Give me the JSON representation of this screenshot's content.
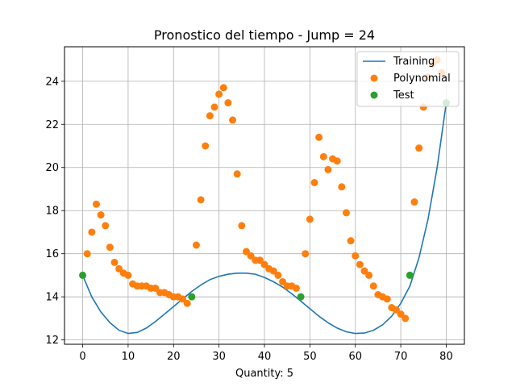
{
  "chart_data": {
    "type": "line",
    "title": "Pronostico del tiempo - Jump = 24",
    "xlabel": "Quantity: 5",
    "ylabel": "",
    "xlim": [
      -4,
      84
    ],
    "ylim": [
      11.8,
      25.6
    ],
    "xticks": [
      0,
      10,
      20,
      30,
      40,
      50,
      60,
      70,
      80
    ],
    "yticks": [
      12,
      14,
      16,
      18,
      20,
      22,
      24
    ],
    "grid": true,
    "legend_position": "top-right",
    "colors": {
      "training": "#1f77b4",
      "polynomial": "#ff7f0e",
      "test": "#2ca02c"
    },
    "series": [
      {
        "name": "Training",
        "kind": "line",
        "x": [
          0,
          2,
          4,
          6,
          8,
          10,
          12,
          14,
          16,
          18,
          20,
          22,
          24,
          26,
          28,
          30,
          32,
          34,
          36,
          38,
          40,
          42,
          44,
          46,
          48,
          50,
          52,
          54,
          56,
          58,
          60,
          62,
          64,
          66,
          68,
          70,
          72,
          74,
          76,
          78,
          80
        ],
        "y": [
          15.0,
          14.0,
          13.3,
          12.8,
          12.45,
          12.3,
          12.35,
          12.55,
          12.85,
          13.2,
          13.55,
          13.9,
          14.25,
          14.55,
          14.8,
          14.95,
          15.05,
          15.1,
          15.1,
          15.05,
          14.9,
          14.7,
          14.45,
          14.15,
          13.8,
          13.45,
          13.1,
          12.8,
          12.55,
          12.38,
          12.3,
          12.32,
          12.45,
          12.7,
          13.1,
          13.7,
          14.5,
          15.8,
          17.6,
          20.0,
          23.0
        ]
      },
      {
        "name": "Polynomial",
        "kind": "scatter",
        "x": [
          1,
          2,
          3,
          4,
          5,
          6,
          7,
          8,
          9,
          10,
          11,
          12,
          13,
          14,
          15,
          16,
          17,
          18,
          19,
          20,
          21,
          22,
          23,
          25,
          26,
          27,
          28,
          29,
          30,
          31,
          32,
          33,
          34,
          35,
          36,
          37,
          38,
          39,
          40,
          41,
          42,
          43,
          44,
          45,
          46,
          47,
          49,
          50,
          51,
          52,
          53,
          54,
          55,
          56,
          57,
          58,
          59,
          60,
          61,
          62,
          63,
          64,
          65,
          66,
          67,
          68,
          69,
          70,
          71,
          73,
          74,
          75,
          76,
          77,
          78,
          79
        ],
        "y": [
          16.0,
          17.0,
          18.3,
          17.8,
          17.3,
          16.3,
          15.6,
          15.3,
          15.1,
          15.0,
          14.6,
          14.5,
          14.5,
          14.5,
          14.4,
          14.4,
          14.2,
          14.2,
          14.1,
          14.0,
          14.0,
          13.9,
          13.7,
          16.4,
          18.5,
          21.0,
          22.4,
          22.8,
          23.4,
          23.7,
          23.0,
          22.2,
          19.7,
          17.3,
          16.1,
          15.9,
          15.7,
          15.7,
          15.5,
          15.3,
          15.2,
          15.0,
          14.7,
          14.5,
          14.5,
          14.4,
          16.0,
          17.6,
          19.3,
          21.4,
          20.5,
          19.9,
          20.4,
          20.3,
          19.1,
          17.9,
          16.6,
          15.9,
          15.5,
          15.2,
          15.0,
          14.5,
          14.1,
          14.0,
          13.9,
          13.5,
          13.4,
          13.2,
          13.0,
          18.4,
          20.9,
          22.8,
          24.2,
          24.8,
          25.0,
          24.4
        ]
      },
      {
        "name": "Test",
        "kind": "scatter",
        "x": [
          0,
          24,
          48,
          72,
          80
        ],
        "y": [
          15.0,
          14.0,
          14.0,
          15.0,
          23.0
        ]
      }
    ]
  }
}
